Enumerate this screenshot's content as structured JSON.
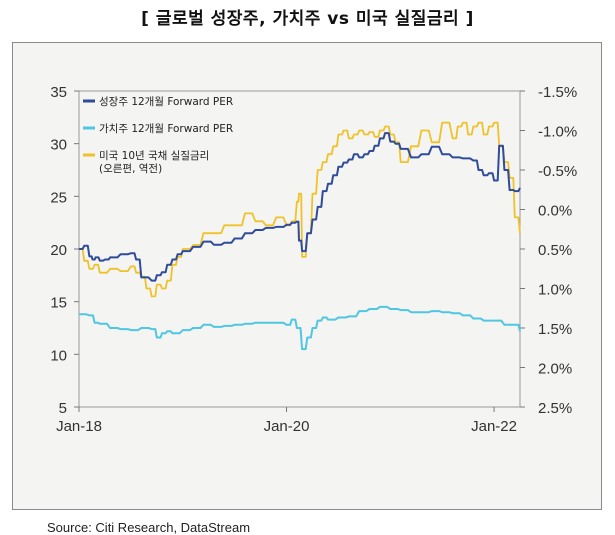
{
  "header": {
    "title": "[ 글로벌 성장주, 가치주 vs 미국 실질금리 ]"
  },
  "footer": {
    "source": "Source: Citi Research, DataStream"
  },
  "colors": {
    "growth": "#2f4b9a",
    "value": "#4fc6e2",
    "yield": "#efc22a",
    "frame": "#8a8a8a",
    "text": "#333333"
  },
  "chart_data": {
    "type": "line",
    "title": "[ 글로벌 성장주, 가치주 vs 미국 실질금리 ]",
    "x_ticks": [
      "Jan-18",
      "Jan-20",
      "Jan-22"
    ],
    "x_range": [
      2018.0,
      2022.25
    ],
    "y_left": {
      "min": 5,
      "max": 35,
      "ticks": [
        "35",
        "30",
        "25",
        "20",
        "15",
        "10",
        "5"
      ]
    },
    "y_right": {
      "min": -1.5,
      "max": 2.5,
      "inverted": true,
      "ticks": [
        "-1.5%",
        "-1.0%",
        "-0.5%",
        "0.0%",
        "0.5%",
        "1.0%",
        "1.5%",
        "2.0%",
        "2.5%"
      ]
    },
    "legend": [
      "성장주 12개월 Forward PER",
      "가치주 12개월 Forward PER",
      "미국 10년 국채 실질금리",
      "(오른편, 역전)"
    ],
    "series": [
      {
        "name": "성장주 12개월 Forward PER",
        "axis": "left",
        "x": [
          2018.0,
          2018.05,
          2018.1,
          2018.13,
          2018.16,
          2018.2,
          2018.25,
          2018.3,
          2018.4,
          2018.5,
          2018.55,
          2018.6,
          2018.7,
          2018.75,
          2018.8,
          2018.85,
          2018.9,
          2018.95,
          2019.0,
          2019.1,
          2019.2,
          2019.3,
          2019.4,
          2019.5,
          2019.6,
          2019.7,
          2019.8,
          2019.9,
          2020.0,
          2020.05,
          2020.1,
          2020.12,
          2020.15,
          2020.2,
          2020.25,
          2020.3,
          2020.35,
          2020.4,
          2020.45,
          2020.5,
          2020.55,
          2020.6,
          2020.65,
          2020.7,
          2020.75,
          2020.8,
          2020.85,
          2020.9,
          2020.95,
          2021.0,
          2021.05,
          2021.1,
          2021.2,
          2021.3,
          2021.4,
          2021.5,
          2021.6,
          2021.7,
          2021.8,
          2021.85,
          2021.9,
          2021.95,
          2022.0,
          2022.05,
          2022.1,
          2022.15,
          2022.2,
          2022.25
        ],
        "values": [
          20,
          20.3,
          19.3,
          19.0,
          19.2,
          18.9,
          19.0,
          19.2,
          19.5,
          19.6,
          19.0,
          17.3,
          17.0,
          17.5,
          17.8,
          18.5,
          19.0,
          19.5,
          19.8,
          20.2,
          20.7,
          20.4,
          20.6,
          21.0,
          21.5,
          21.8,
          22.0,
          22.1,
          22.3,
          22.5,
          22.6,
          20.8,
          19.8,
          21.5,
          22.8,
          24.0,
          25.5,
          26.2,
          27.0,
          27.8,
          28.2,
          28.5,
          29.0,
          28.7,
          29.0,
          29.3,
          29.8,
          30.5,
          31.0,
          30.2,
          30.0,
          29.5,
          28.7,
          29.0,
          29.7,
          29.0,
          28.7,
          28.6,
          28.4,
          27.5,
          27.0,
          27.2,
          26.5,
          29.8,
          27.5,
          25.6,
          25.5,
          25.8
        ]
      },
      {
        "name": "가치주 12개월 Forward PER",
        "axis": "left",
        "x": [
          2018.0,
          2018.1,
          2018.15,
          2018.2,
          2018.3,
          2018.4,
          2018.5,
          2018.6,
          2018.7,
          2018.75,
          2018.8,
          2018.85,
          2018.9,
          2019.0,
          2019.1,
          2019.2,
          2019.3,
          2019.4,
          2019.5,
          2019.6,
          2019.7,
          2019.8,
          2019.9,
          2020.0,
          2020.05,
          2020.1,
          2020.15,
          2020.2,
          2020.25,
          2020.3,
          2020.35,
          2020.4,
          2020.5,
          2020.6,
          2020.7,
          2020.8,
          2020.9,
          2021.0,
          2021.1,
          2021.2,
          2021.3,
          2021.4,
          2021.5,
          2021.6,
          2021.7,
          2021.8,
          2021.9,
          2022.0,
          2022.1,
          2022.2,
          2022.25
        ],
        "values": [
          13.8,
          13.7,
          13.0,
          12.9,
          12.5,
          12.4,
          12.3,
          12.5,
          12.4,
          11.6,
          12.0,
          12.2,
          12.0,
          12.3,
          12.5,
          12.8,
          12.6,
          12.7,
          12.8,
          12.9,
          13.0,
          13.0,
          13.0,
          12.8,
          13.3,
          12.5,
          10.5,
          11.6,
          12.5,
          13.2,
          13.5,
          13.3,
          13.5,
          13.6,
          14.1,
          14.3,
          14.5,
          14.3,
          14.2,
          14.0,
          14.0,
          14.1,
          14.0,
          13.9,
          13.7,
          13.4,
          13.2,
          13.2,
          12.8,
          12.8,
          12.2
        ]
      },
      {
        "name": "미국 10년 국채 실질금리",
        "axis": "right",
        "x": [
          2018.0,
          2018.05,
          2018.1,
          2018.15,
          2018.2,
          2018.3,
          2018.4,
          2018.5,
          2018.55,
          2018.6,
          2018.65,
          2018.7,
          2018.75,
          2018.8,
          2018.85,
          2018.9,
          2018.95,
          2019.0,
          2019.1,
          2019.2,
          2019.3,
          2019.4,
          2019.5,
          2019.6,
          2019.7,
          2019.8,
          2019.9,
          2020.0,
          2020.05,
          2020.1,
          2020.12,
          2020.15,
          2020.2,
          2020.25,
          2020.3,
          2020.35,
          2020.4,
          2020.45,
          2020.5,
          2020.55,
          2020.6,
          2020.65,
          2020.7,
          2020.75,
          2020.8,
          2020.85,
          2020.9,
          2020.95,
          2021.0,
          2021.05,
          2021.1,
          2021.2,
          2021.3,
          2021.4,
          2021.5,
          2021.6,
          2021.65,
          2021.7,
          2021.75,
          2021.8,
          2021.85,
          2021.9,
          2021.95,
          2022.0,
          2022.05,
          2022.1,
          2022.15,
          2022.2,
          2022.25
        ],
        "values": [
          0.5,
          0.65,
          0.75,
          0.7,
          0.8,
          0.75,
          0.78,
          0.72,
          0.8,
          0.85,
          1.0,
          1.1,
          0.95,
          1.0,
          0.9,
          0.7,
          0.6,
          0.5,
          0.45,
          0.3,
          0.3,
          0.2,
          0.2,
          0.05,
          0.15,
          0.2,
          0.1,
          0.2,
          0.15,
          -0.1,
          -0.2,
          0.6,
          0.3,
          -0.2,
          -0.5,
          -0.6,
          -0.7,
          -0.8,
          -0.95,
          -1.0,
          -0.9,
          -0.95,
          -1.0,
          -0.95,
          -0.98,
          -0.92,
          -1.0,
          -1.05,
          -0.95,
          -0.85,
          -0.6,
          -0.8,
          -1.0,
          -0.85,
          -1.1,
          -0.9,
          -1.05,
          -1.1,
          -0.95,
          -1.05,
          -1.1,
          -0.95,
          -1.05,
          -1.1,
          -0.8,
          -0.6,
          -0.4,
          0.1,
          0.3
        ]
      }
    ]
  }
}
